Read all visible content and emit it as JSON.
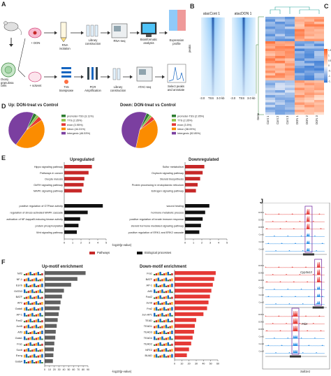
{
  "panelA": {
    "letter": "A",
    "row1_labels": [
      "+ DON",
      "RNA\nisolation",
      "Library\nconstruction",
      "RNA-seq",
      "Bioinformatic\nanalysis",
      "Expression\nprofile"
    ],
    "row2_labels": [
      "Ovary\ngranulosa\ncells",
      "+ solvent",
      "Tn5\ntranspsase",
      "PCR\nAmplification",
      "Library\nconstruction",
      "ATAC-seq",
      "Select peaks\nand annotate"
    ]
  },
  "panelB": {
    "letter": "B",
    "titles": [
      "atacCont 1",
      "atacDON 1"
    ],
    "ylabel": "peaks",
    "xticks": [
      "-3.0",
      "TSS",
      "3.0 kb"
    ]
  },
  "panelC": {
    "letter": "C",
    "samples": [
      "Cont 1",
      "Cont 2",
      "Cont 3",
      "DON 1",
      "DON 2",
      "DON 3"
    ],
    "row_label": "Gene",
    "scale_ticks": [
      "1.5",
      "1",
      "0.5",
      "0",
      "-0.5",
      "-1",
      "-1.5"
    ]
  },
  "panelD": {
    "letter": "D",
    "charts": [
      {
        "title": "Up: DON-treat vs Control",
        "legend": [
          "promoter-TSS (3.11%)",
          "TTS (2.35%)",
          "exon (3.95%)",
          "intron (44.31%)",
          "Intergenic (46.53%)"
        ]
      },
      {
        "title": "Down: DON-treat vs Control",
        "legend": [
          "promoter-TSS (2.95%)",
          "TTS (2.35%)",
          "exon (3.5%)",
          "intron (38.09%)",
          "Intergenic (52.85%)"
        ]
      }
    ],
    "colors": [
      "#2e7d32",
      "#8bc34a",
      "#e53935",
      "#fb8c00",
      "#7b3fa0"
    ]
  },
  "panelE": {
    "letter": "E",
    "up_title": "Upregulated",
    "down_title": "Downregulated",
    "xlabel": "-log10(p-value)",
    "legend": [
      {
        "label": "Pathways",
        "color": "#c62828"
      },
      {
        "label": "Biological processes",
        "color": "#111111"
      }
    ],
    "up": [
      {
        "term": "Hippo signaling pathway",
        "value": 3.3,
        "kind": "pathway"
      },
      {
        "term": "Pathways in cancer",
        "value": 2.9,
        "kind": "pathway"
      },
      {
        "term": "Oocyte meiosis",
        "value": 2.4,
        "kind": "pathway"
      },
      {
        "term": "GnRH signaling pathway",
        "value": 2.3,
        "kind": "pathway"
      },
      {
        "term": "MAPK signaling pathway",
        "value": 2.1,
        "kind": "pathway"
      },
      {
        "term": "positive regulation of GTPase activity",
        "value": 4.6,
        "kind": "process"
      },
      {
        "term": "regulation of stress-activated MAPK cascade",
        "value": 2.8,
        "kind": "process"
      },
      {
        "term": "activation of NF-kappaB-inducing kinase activity",
        "value": 1.9,
        "kind": "process"
      },
      {
        "term": "protein phosphorylation",
        "value": 1.7,
        "kind": "process"
      },
      {
        "term": "Wnt signaling pathway",
        "value": 1.5,
        "kind": "process"
      }
    ],
    "down": [
      {
        "term": "Sulfur metabolism",
        "value": 2.3,
        "kind": "pathway"
      },
      {
        "term": "Oxytocin signaling pathway",
        "value": 2.1,
        "kind": "pathway"
      },
      {
        "term": "Steroid biosynthesis",
        "value": 1.8,
        "kind": "pathway"
      },
      {
        "term": "Protein processing in endoplasmic reticulum",
        "value": 1.5,
        "kind": "pathway"
      },
      {
        "term": "Estrogen signaling pathway",
        "value": 1.3,
        "kind": "pathway"
      },
      {
        "term": "wound healing",
        "value": 2.9,
        "kind": "process"
      },
      {
        "term": "hormone metabolic process",
        "value": 2.4,
        "kind": "process"
      },
      {
        "term": "positive regulation of innate immune response",
        "value": 2.1,
        "kind": "process"
      },
      {
        "term": "steroid hormone mediated signaling pathway",
        "value": 1.9,
        "kind": "process"
      },
      {
        "term": "positive regulation of ERK1 and ERK2 cascade",
        "value": 1.7,
        "kind": "process"
      }
    ],
    "up_ticks": [
      0,
      1,
      2,
      3,
      4,
      5
    ],
    "down_ticks": [
      0,
      1,
      2,
      3,
      4,
      5
    ]
  },
  "panelF": {
    "letter": "F",
    "up_title": "Up-motif enrichment",
    "down_title": "Down-motif enrichment",
    "xlabel": "-log10(p-value)",
    "up": [
      {
        "name": "Nrf2",
        "value": 85
      },
      {
        "name": "NF-1",
        "value": 68
      },
      {
        "name": "Esrrb",
        "value": 55
      },
      {
        "name": "GATA3",
        "value": 40
      },
      {
        "name": "BATF",
        "value": 36
      },
      {
        "name": "AP2",
        "value": 33
      },
      {
        "name": "Gata6",
        "value": 31
      },
      {
        "name": "AP-1",
        "value": 29
      },
      {
        "name": "Fosl2",
        "value": 27
      },
      {
        "name": "JunB",
        "value": 25
      },
      {
        "name": "Atf3",
        "value": 23
      },
      {
        "name": "Gata1",
        "value": 22
      },
      {
        "name": "Fra1",
        "value": 20
      },
      {
        "name": "Sox6",
        "value": 19
      },
      {
        "name": "Esrrg",
        "value": 18
      },
      {
        "name": "Gata4",
        "value": 17
      }
    ],
    "down": [
      {
        "name": "Fra1",
        "value": 57
      },
      {
        "name": "BATF",
        "value": 55
      },
      {
        "name": "AP-1",
        "value": 53
      },
      {
        "name": "Atf3",
        "value": 51
      },
      {
        "name": "Fosl2",
        "value": 49
      },
      {
        "name": "JunB",
        "value": 47
      },
      {
        "name": "Fra2",
        "value": 45
      },
      {
        "name": "Jun-AP1",
        "value": 40
      },
      {
        "name": "TEAD",
        "value": 30
      },
      {
        "name": "TEAD1",
        "value": 28
      },
      {
        "name": "TEAD3",
        "value": 27
      },
      {
        "name": "TEAD4",
        "value": 25
      },
      {
        "name": "TEAD2",
        "value": 23
      },
      {
        "name": "NFE2",
        "value": 20
      },
      {
        "name": "BUAD",
        "value": 17
      }
    ],
    "up_ticks": [
      0,
      10,
      20,
      30,
      40,
      50,
      60,
      70,
      80,
      90
    ],
    "down_ticks": [
      0,
      10,
      20,
      30,
      40,
      50,
      60
    ],
    "colors": {
      "up": "#616161",
      "down": "#e53935"
    }
  },
  "panelJ": {
    "letter": "J",
    "genes": [
      "Cyp3a13",
      "Pdzr",
      "Sult1e1"
    ],
    "track_labels": [
      "DON1",
      "DON2",
      "DON3",
      "Cont1",
      "Cont2",
      "Cont3"
    ]
  }
}
